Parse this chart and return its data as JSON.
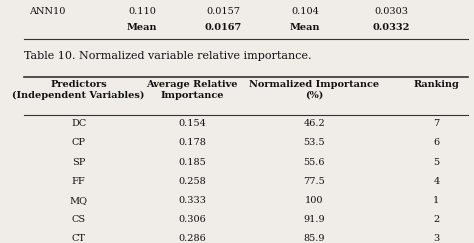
{
  "title": "Table 10. Normalized variable relative importance.",
  "top_row": [
    "ANN10",
    "0.110",
    "0.0157",
    "0.104",
    "0.0303"
  ],
  "mean_row": [
    "",
    "Mean",
    "0.0167",
    "Mean",
    "0.0332"
  ],
  "headers": [
    "Predictors\n(Independent Variables)",
    "Average Relative\nImportance",
    "Normalized Importance\n(%)",
    "Ranking"
  ],
  "rows": [
    [
      "DC",
      "0.154",
      "46.2",
      "7"
    ],
    [
      "CP",
      "0.178",
      "53.5",
      "6"
    ],
    [
      "SP",
      "0.185",
      "55.6",
      "5"
    ],
    [
      "FF",
      "0.258",
      "77.5",
      "4"
    ],
    [
      "MQ",
      "0.333",
      "100",
      "1"
    ],
    [
      "CS",
      "0.306",
      "91.9",
      "2"
    ],
    [
      "CT",
      "0.286",
      "85.9",
      "3"
    ]
  ],
  "bg_color": "#f0ede8",
  "text_color": "#111111",
  "header_fontsize": 7.0,
  "data_fontsize": 7.0,
  "title_fontsize": 8.0,
  "bold_vals": [
    "Mean",
    "0.0167",
    "0.0332"
  ]
}
